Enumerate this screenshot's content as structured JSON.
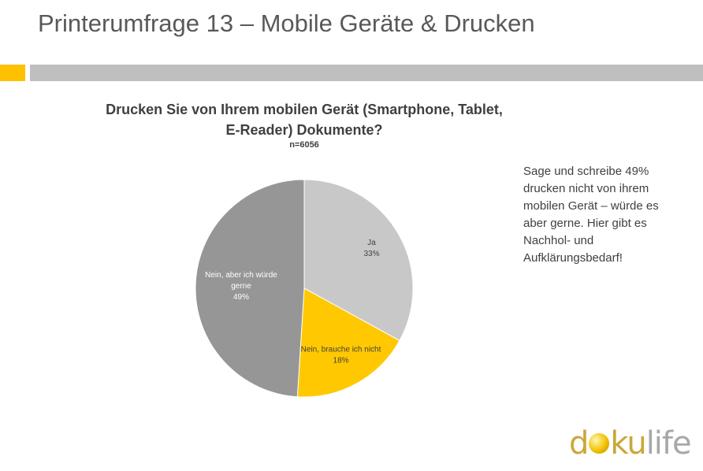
{
  "slide": {
    "title": "Printerumfrage 13 – Mobile Geräte & Drucken"
  },
  "chart_data": {
    "type": "pie",
    "title": "Drucken Sie von Ihrem mobilen Gerät (Smartphone, Tablet, E-Reader) Dokumente?",
    "title_line1": "Drucken Sie von Ihrem mobilen Gerät (Smartphone, Tablet,",
    "title_line2": "E-Reader) Dokumente?",
    "subtitle": "n=6056",
    "slices": [
      {
        "label_lines": [
          "Ja"
        ],
        "value": 33,
        "value_label": "33%",
        "color": "#c8c8c8",
        "label_color": "#404040"
      },
      {
        "label_lines": [
          "Nein, brauche ich nicht"
        ],
        "value": 18,
        "value_label": "18%",
        "color": "#ffc800",
        "label_color": "#404040"
      },
      {
        "label_lines": [
          "Nein, aber ich würde",
          "gerne"
        ],
        "value": 49,
        "value_label": "49%",
        "color": "#969696",
        "label_color": "#ffffff"
      }
    ],
    "start": "12 o'clock",
    "direction": "clockwise"
  },
  "note": {
    "text": "Sage und schreibe 49% drucken nicht von ihrem mobilen Gerät – würde es aber gerne. Hier gibt es Nachhol- und Aufklärungsbedarf!"
  },
  "logo": {
    "part1": "d",
    "part2": "ku",
    "part3": "life"
  }
}
